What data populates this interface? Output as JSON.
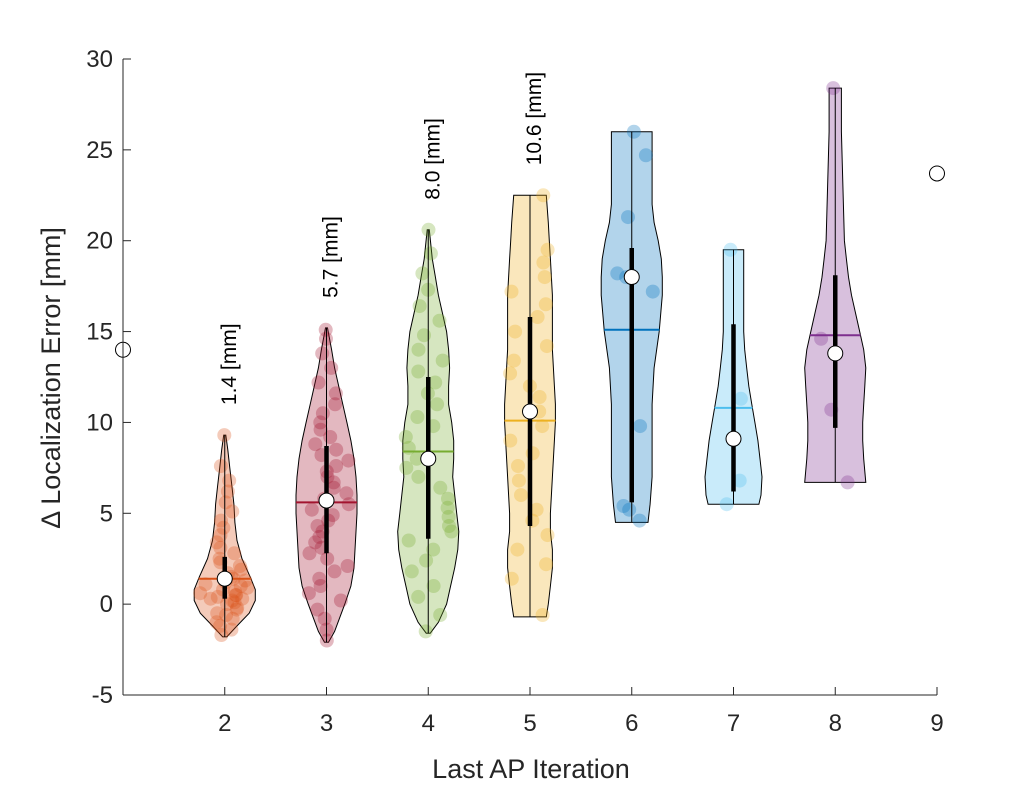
{
  "chart_data": {
    "type": "violin",
    "xlabel": "Last AP Iteration",
    "ylabel": "Δ Localization Error [mm]",
    "xlim": [
      1,
      9
    ],
    "ylim": [
      -5,
      30
    ],
    "xticks": [
      "2",
      "3",
      "4",
      "5",
      "6",
      "7",
      "8",
      "9"
    ],
    "yticks": [
      "-5",
      "0",
      "5",
      "10",
      "15",
      "20",
      "25",
      "30"
    ],
    "outliers": [
      {
        "x": 1,
        "y": 14.0
      },
      {
        "x": 9,
        "y": 23.7
      }
    ],
    "series": [
      {
        "name": "2",
        "x": 2,
        "color": "#D95319",
        "min": -1.8,
        "max": 9.3,
        "q1": 0.3,
        "q3": 2.6,
        "median": 1.4,
        "mean": 1.4,
        "annotation": "1.4 [mm]",
        "profile": [
          [
            -1.8,
            0.02
          ],
          [
            -1.2,
            0.12
          ],
          [
            -0.5,
            0.24
          ],
          [
            0.2,
            0.3
          ],
          [
            0.8,
            0.3
          ],
          [
            1.5,
            0.25
          ],
          [
            2.5,
            0.17
          ],
          [
            3.5,
            0.12
          ],
          [
            4.5,
            0.1
          ],
          [
            5.5,
            0.09
          ],
          [
            6.5,
            0.07
          ],
          [
            7.5,
            0.05
          ],
          [
            8.5,
            0.03
          ],
          [
            9.3,
            0.01
          ]
        ],
        "points": [
          -1.7,
          -1.4,
          -1.2,
          -1.0,
          -0.8,
          -0.6,
          -0.5,
          -0.3,
          -0.2,
          0.0,
          0.1,
          0.2,
          0.3,
          0.3,
          0.4,
          0.5,
          0.5,
          0.6,
          0.7,
          0.8,
          0.9,
          1.0,
          1.1,
          1.2,
          1.3,
          1.4,
          1.5,
          1.7,
          1.9,
          2.1,
          2.3,
          2.5,
          2.8,
          3.1,
          3.4,
          3.8,
          4.2,
          4.6,
          5.1,
          5.6,
          6.2,
          6.8,
          7.6,
          9.3
        ]
      },
      {
        "name": "3",
        "x": 3,
        "color": "#A2142F",
        "min": -2.1,
        "max": 15.2,
        "q1": 2.8,
        "q3": 8.7,
        "median": 5.7,
        "mean": 5.6,
        "annotation": "5.7 [mm]",
        "profile": [
          [
            -2.1,
            0.02
          ],
          [
            -1.5,
            0.08
          ],
          [
            0,
            0.18
          ],
          [
            1,
            0.24
          ],
          [
            2,
            0.27
          ],
          [
            3,
            0.28
          ],
          [
            4,
            0.29
          ],
          [
            5,
            0.3
          ],
          [
            6,
            0.3
          ],
          [
            7,
            0.29
          ],
          [
            8,
            0.27
          ],
          [
            9,
            0.24
          ],
          [
            10,
            0.2
          ],
          [
            11,
            0.16
          ],
          [
            12,
            0.12
          ],
          [
            13,
            0.08
          ],
          [
            14,
            0.05
          ],
          [
            15.2,
            0.01
          ]
        ],
        "points": [
          -2.0,
          -1.4,
          -0.8,
          -0.3,
          0.2,
          0.6,
          1.0,
          1.4,
          1.8,
          2.1,
          2.5,
          2.8,
          3.1,
          3.4,
          3.7,
          4.0,
          4.3,
          4.6,
          4.9,
          5.2,
          5.5,
          5.8,
          6.1,
          6.4,
          6.7,
          7.0,
          7.3,
          7.6,
          7.9,
          8.2,
          8.5,
          8.8,
          9.2,
          9.6,
          10.0,
          10.5,
          11.0,
          11.6,
          12.2,
          13.0,
          13.8,
          14.6,
          15.1
        ]
      },
      {
        "name": "4",
        "x": 4,
        "color": "#77AC30",
        "min": -1.6,
        "max": 20.6,
        "q1": 3.6,
        "q3": 12.5,
        "median": 8.0,
        "mean": 8.4,
        "annotation": "8.0 [mm]",
        "profile": [
          [
            -1.6,
            0.02
          ],
          [
            -1,
            0.1
          ],
          [
            0,
            0.18
          ],
          [
            1,
            0.22
          ],
          [
            2,
            0.26
          ],
          [
            3,
            0.29
          ],
          [
            4,
            0.3
          ],
          [
            5,
            0.28
          ],
          [
            6,
            0.26
          ],
          [
            7,
            0.24
          ],
          [
            8,
            0.25
          ],
          [
            9,
            0.25
          ],
          [
            10,
            0.23
          ],
          [
            11,
            0.2
          ],
          [
            12,
            0.2
          ],
          [
            13,
            0.21
          ],
          [
            14,
            0.2
          ],
          [
            15,
            0.18
          ],
          [
            16,
            0.14
          ],
          [
            17,
            0.1
          ],
          [
            18,
            0.07
          ],
          [
            19,
            0.04
          ],
          [
            20.6,
            0.01
          ]
        ],
        "points": [
          -1.5,
          -0.6,
          0.4,
          1.0,
          1.8,
          2.4,
          3.0,
          3.5,
          4.0,
          4.3,
          4.8,
          5.3,
          5.8,
          6.4,
          7.0,
          7.5,
          8.0,
          8.6,
          9.2,
          9.8,
          10.3,
          11.0,
          11.6,
          12.2,
          12.8,
          13.4,
          14.0,
          14.8,
          15.6,
          16.4,
          17.3,
          18.2,
          19.3,
          20.6
        ]
      },
      {
        "name": "5",
        "x": 5,
        "color": "#EDB120",
        "min": -0.7,
        "max": 22.5,
        "q1": 4.3,
        "q3": 15.8,
        "median": 10.6,
        "mean": 10.1,
        "annotation": "10.6 [mm]",
        "profile": [
          [
            -0.7,
            0.16
          ],
          [
            0,
            0.18
          ],
          [
            1,
            0.2
          ],
          [
            2,
            0.22
          ],
          [
            3,
            0.22
          ],
          [
            4,
            0.2
          ],
          [
            5,
            0.2
          ],
          [
            6,
            0.21
          ],
          [
            7,
            0.22
          ],
          [
            8,
            0.23
          ],
          [
            9,
            0.24
          ],
          [
            10,
            0.25
          ],
          [
            11,
            0.25
          ],
          [
            12,
            0.24
          ],
          [
            13,
            0.23
          ],
          [
            14,
            0.22
          ],
          [
            15,
            0.22
          ],
          [
            16,
            0.22
          ],
          [
            17,
            0.22
          ],
          [
            18,
            0.21
          ],
          [
            19,
            0.2
          ],
          [
            20,
            0.19
          ],
          [
            21,
            0.18
          ],
          [
            22.5,
            0.16
          ]
        ],
        "points": [
          -0.6,
          1.4,
          2.2,
          3.0,
          3.8,
          4.6,
          5.2,
          6.0,
          6.8,
          7.6,
          8.3,
          9.0,
          9.8,
          10.6,
          11.4,
          12.0,
          12.7,
          13.4,
          14.2,
          15.0,
          15.8,
          16.5,
          17.2,
          18.0,
          18.8,
          19.5,
          22.5
        ]
      },
      {
        "name": "6",
        "x": 6,
        "color": "#0072BD",
        "min": 4.5,
        "max": 26.0,
        "q1": 5.6,
        "q3": 19.6,
        "median": 18.0,
        "mean": 15.1,
        "annotation": "",
        "profile": [
          [
            4.5,
            0.16
          ],
          [
            5.5,
            0.18
          ],
          [
            7,
            0.2
          ],
          [
            9,
            0.2
          ],
          [
            11,
            0.2
          ],
          [
            13,
            0.22
          ],
          [
            15,
            0.27
          ],
          [
            17,
            0.3
          ],
          [
            18,
            0.3
          ],
          [
            19,
            0.29
          ],
          [
            20,
            0.26
          ],
          [
            21,
            0.22
          ],
          [
            22,
            0.2
          ],
          [
            23,
            0.2
          ],
          [
            24,
            0.2
          ],
          [
            25,
            0.2
          ],
          [
            26,
            0.2
          ]
        ],
        "points": [
          4.6,
          5.2,
          5.4,
          9.8,
          17.2,
          18.0,
          18.2,
          21.3,
          24.7,
          26.0
        ]
      },
      {
        "name": "7",
        "x": 7,
        "color": "#4DBEEE",
        "min": 5.5,
        "max": 19.5,
        "q1": 6.2,
        "q3": 15.4,
        "median": 9.1,
        "mean": 10.8,
        "annotation": "",
        "profile": [
          [
            5.5,
            0.25
          ],
          [
            6,
            0.27
          ],
          [
            7,
            0.28
          ],
          [
            8,
            0.26
          ],
          [
            9,
            0.24
          ],
          [
            10,
            0.21
          ],
          [
            11,
            0.18
          ],
          [
            12,
            0.15
          ],
          [
            13,
            0.13
          ],
          [
            14,
            0.11
          ],
          [
            15,
            0.1
          ],
          [
            16,
            0.1
          ],
          [
            17,
            0.1
          ],
          [
            18,
            0.1
          ],
          [
            19.5,
            0.1
          ]
        ],
        "points": [
          5.5,
          6.8,
          11.3,
          19.5
        ]
      },
      {
        "name": "8",
        "x": 8,
        "color": "#7E2F8E",
        "min": 6.7,
        "max": 28.4,
        "q1": 9.7,
        "q3": 18.1,
        "median": 13.8,
        "mean": 14.8,
        "annotation": "",
        "profile": [
          [
            6.7,
            0.3
          ],
          [
            8,
            0.28
          ],
          [
            9,
            0.27
          ],
          [
            10,
            0.27
          ],
          [
            11,
            0.28
          ],
          [
            12,
            0.29
          ],
          [
            13,
            0.3
          ],
          [
            14,
            0.28
          ],
          [
            15,
            0.24
          ],
          [
            16,
            0.2
          ],
          [
            17,
            0.16
          ],
          [
            18,
            0.13
          ],
          [
            19,
            0.11
          ],
          [
            20,
            0.09
          ],
          [
            22,
            0.08
          ],
          [
            24,
            0.07
          ],
          [
            26,
            0.06
          ],
          [
            28.4,
            0.06
          ]
        ],
        "points": [
          6.7,
          10.7,
          14.6,
          28.4
        ]
      }
    ]
  }
}
